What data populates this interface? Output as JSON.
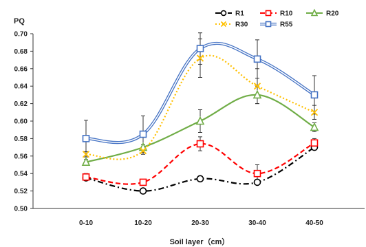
{
  "chart_data": {
    "type": "line",
    "ylabel": "PQ",
    "xlabel": "Soil layer（cm）",
    "categories": [
      "0-10",
      "10-20",
      "20-30",
      "30-40",
      "40-50"
    ],
    "ylim": [
      0.5,
      0.7
    ],
    "yticks": [
      "0.50",
      "0.52",
      "0.54",
      "0.56",
      "0.58",
      "0.60",
      "0.62",
      "0.64",
      "0.66",
      "0.68",
      "0.70"
    ],
    "grid": false,
    "legend_position": "top",
    "series": [
      {
        "name": "R1",
        "values": [
          0.535,
          0.52,
          0.534,
          0.53,
          0.57
        ],
        "color": "#000000",
        "dash": "dashdot",
        "marker": "circle",
        "errors": [
          0.002,
          0.002,
          0.002,
          0.002,
          0.003
        ]
      },
      {
        "name": "R10",
        "values": [
          0.536,
          0.53,
          0.574,
          0.54,
          0.575
        ],
        "color": "#ff0000",
        "dash": "dash",
        "marker": "square",
        "errors": [
          0.004,
          0.003,
          0.008,
          0.01,
          0.005
        ]
      },
      {
        "name": "R20",
        "values": [
          0.553,
          0.57,
          0.6,
          0.63,
          0.593
        ],
        "color": "#70ad47",
        "dash": "solid",
        "marker": "triangle",
        "errors": [
          0.003,
          0.003,
          0.013,
          0.01,
          0.005
        ]
      },
      {
        "name": "R30",
        "values": [
          0.562,
          0.566,
          0.672,
          0.64,
          0.61
        ],
        "color": "#ffc000",
        "dash": "dot",
        "marker": "x",
        "errors": [
          0.003,
          0.004,
          0.022,
          0.02,
          0.008
        ]
      },
      {
        "name": "R55",
        "values": [
          0.58,
          0.585,
          0.683,
          0.671,
          0.63
        ],
        "color": "#4472c4",
        "dash": "double",
        "marker": "square",
        "errors": [
          0.021,
          0.021,
          0.018,
          0.022,
          0.022
        ]
      }
    ]
  }
}
